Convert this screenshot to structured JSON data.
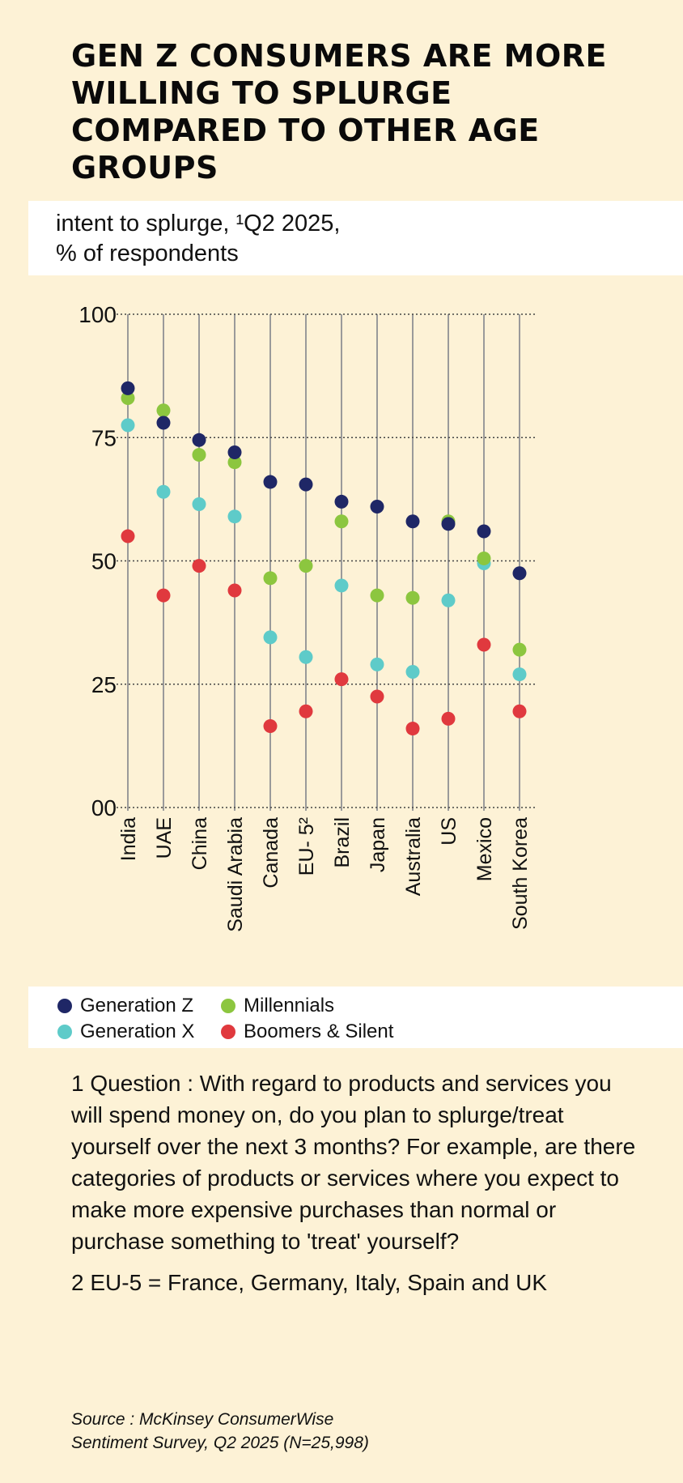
{
  "title": "GEN Z CONSUMERS ARE MORE WILLING TO SPLURGE COMPARED TO OTHER AGE GROUPS",
  "subtitle_line1": "intent to splurge, ¹Q2 2025,",
  "subtitle_line2": "% of respondents",
  "chart_data": {
    "type": "scatter",
    "categories": [
      "India",
      "UAE",
      "China",
      "Saudi Arabia",
      "Canada",
      "EU- 5²",
      "Brazil",
      "Japan",
      "Australia",
      "US",
      "Mexico",
      "South Korea"
    ],
    "ylim": [
      0,
      100
    ],
    "yticks": [
      100,
      75,
      50,
      25,
      0
    ],
    "ytick_labels": [
      "100",
      "75",
      "50",
      "25",
      "00"
    ],
    "grid": true,
    "legend_position": "bottom",
    "series": [
      {
        "name": "Generation Z",
        "color": "#1f2766",
        "values": [
          85,
          78,
          74.5,
          72,
          66,
          65.5,
          62,
          61,
          58,
          57.5,
          56,
          47.5
        ]
      },
      {
        "name": "Millennials",
        "color": "#8cc63f",
        "values": [
          83,
          80.5,
          71.5,
          70,
          46.5,
          49,
          58,
          43,
          42.5,
          58,
          50.5,
          32
        ]
      },
      {
        "name": "Generation X",
        "color": "#5ecbc9",
        "values": [
          77.5,
          64,
          61.5,
          59,
          34.5,
          30.5,
          45,
          29,
          27.5,
          42,
          49.5,
          27
        ]
      },
      {
        "name": "Boomers & Silent",
        "color": "#e0393e",
        "values": [
          55,
          43,
          49,
          44,
          16.5,
          19.5,
          26,
          22.5,
          16,
          18,
          33,
          19.5
        ]
      }
    ]
  },
  "notes": {
    "note1": "1  Question : With regard to products and services you will spend money on, do you plan to splurge/treat yourself over the next 3 months? For  example, are there categories of products or services where you expect to make more expensive purchases than normal or purchase something to 'treat' yourself?",
    "note2": "2 EU-5 = France, Germany, Italy, Spain and UK"
  },
  "source_line1": "Source : McKinsey ConsumerWise",
  "source_line2": "Sentiment Survey, Q2 2025 (N=25,998)"
}
